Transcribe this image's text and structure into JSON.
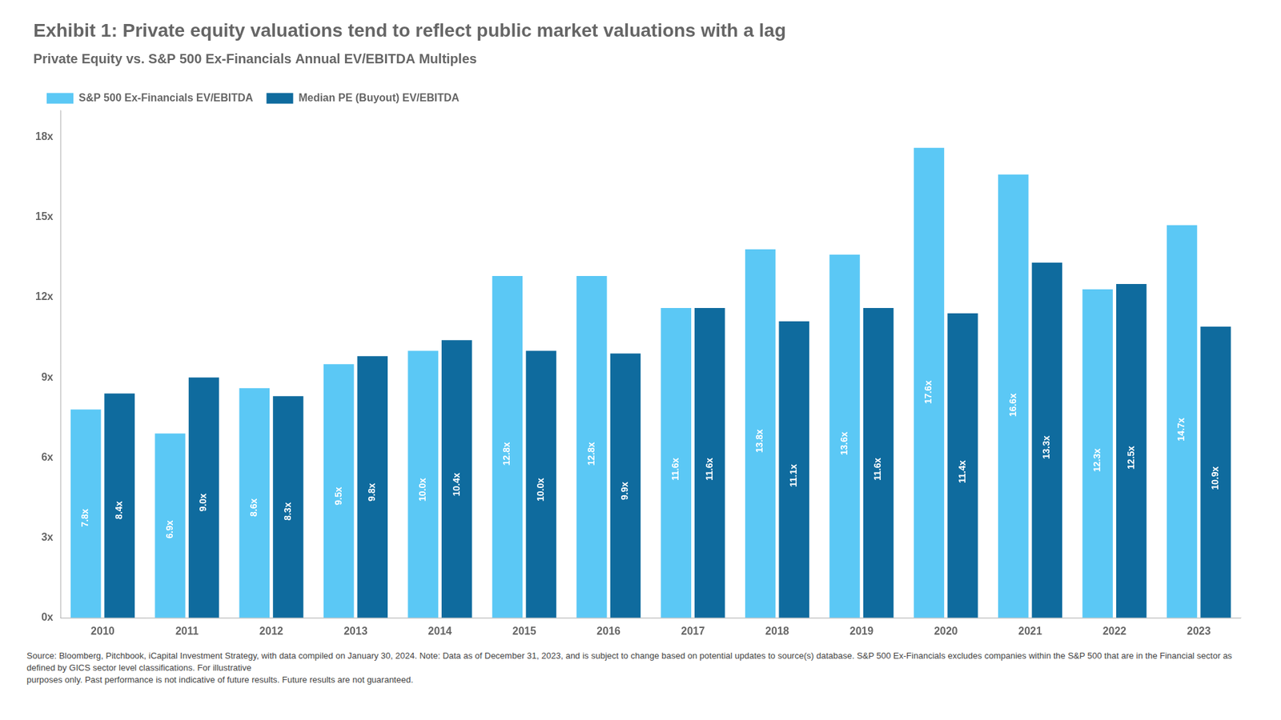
{
  "chart_data": {
    "type": "bar",
    "title": "Exhibit 1: Private equity valuations tend to reflect public market valuations with a lag",
    "subtitle": "Private Equity vs. S&P 500 Ex-Financials Annual EV/EBITDA Multiples",
    "source": "Source: Bloomberg, Pitchbook, iCapital Investment Strategy, with data compiled on January 30, 2024. Note: Data as of December 31, 2023, and is subject to change based on potential updates to source(s) database. S&P 500 Ex-Financials excludes companies within the S&P 500 that are in the Financial sector as defined by GICS sector level classifications. For illustrative\npurposes only. Past performance is not indicative of future results. Future results are not guaranteed.",
    "categories": [
      "2010",
      "2011",
      "2012",
      "2013",
      "2014",
      "2015",
      "2016",
      "2017",
      "2018",
      "2019",
      "2020",
      "2021",
      "2022",
      "2023"
    ],
    "series": [
      {
        "name": "S&P 500 Ex-Financials EV/EBITDA",
        "color": "#5BC8F5",
        "values": [
          7.8,
          6.9,
          8.6,
          9.5,
          10.0,
          12.8,
          12.8,
          11.6,
          13.8,
          13.6,
          17.6,
          16.6,
          12.3,
          14.7
        ],
        "value_labels": [
          "7.8x",
          "6.9x",
          "8.6x",
          "9.5x",
          "10.0x",
          "12.8x",
          "12.8x",
          "11.6x",
          "13.8x",
          "13.6x",
          "17.6x",
          "16.6x",
          "12.3x",
          "14.7x"
        ]
      },
      {
        "name": "Median PE (Buyout) EV/EBITDA",
        "color": "#0F6B9E",
        "values": [
          8.4,
          9.0,
          8.3,
          9.8,
          10.4,
          10.0,
          9.9,
          11.6,
          11.1,
          11.6,
          11.4,
          13.3,
          12.5,
          10.9
        ],
        "value_labels": [
          "8.4x",
          "9.0x",
          "8.3x",
          "9.8x",
          "10.4x",
          "10.0x",
          "9.9x",
          "11.6x",
          "11.1x",
          "11.6x",
          "11.4x",
          "13.3x",
          "12.5x",
          "10.9x"
        ]
      }
    ],
    "ylim": [
      0,
      19
    ],
    "yticks": [
      {
        "value": 0,
        "label": "0x"
      },
      {
        "value": 3,
        "label": "3x"
      },
      {
        "value": 6,
        "label": "6x"
      },
      {
        "value": 9,
        "label": "9x"
      },
      {
        "value": 12,
        "label": "12x"
      },
      {
        "value": 15,
        "label": "15x"
      },
      {
        "value": 18,
        "label": "18x"
      }
    ],
    "grid": false,
    "legend": "upper left",
    "data_labels": true
  }
}
